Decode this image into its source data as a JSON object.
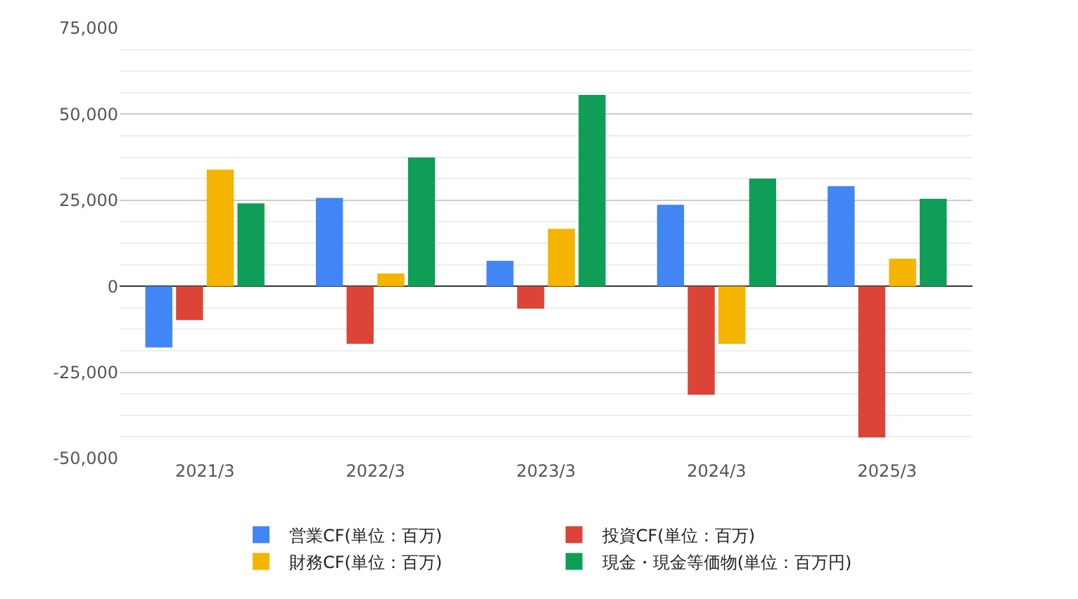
{
  "chart_data": {
    "type": "bar",
    "categories": [
      "2021/3",
      "2022/3",
      "2023/3",
      "2024/3",
      "2025/3"
    ],
    "series": [
      {
        "name": "営業CF(単位：百万)",
        "color": "#4285f4",
        "values": [
          -17800,
          25700,
          7400,
          23700,
          29100
        ]
      },
      {
        "name": "投資CF(単位：百万)",
        "color": "#db4437",
        "values": [
          -9800,
          -16700,
          -6500,
          -31500,
          -43900
        ]
      },
      {
        "name": "財務CF(単位：百万)",
        "color": "#f4b400",
        "values": [
          33900,
          3700,
          16700,
          -16700,
          8000
        ]
      },
      {
        "name": "現金・現金等価物(単位：百万円)",
        "color": "#0f9d58",
        "values": [
          24100,
          37400,
          55600,
          31300,
          25400
        ]
      }
    ],
    "ylim": [
      -50000,
      75000
    ],
    "yticks": [
      {
        "value": -50000,
        "label": "-50,000"
      },
      {
        "value": -25000,
        "label": "-25,000"
      },
      0,
      {
        "value": 25000,
        "label": "25,000"
      },
      {
        "value": 50000,
        "label": "50,000"
      },
      {
        "value": 75000,
        "label": "75,000"
      }
    ],
    "grid": "y",
    "legend": "bottom"
  }
}
